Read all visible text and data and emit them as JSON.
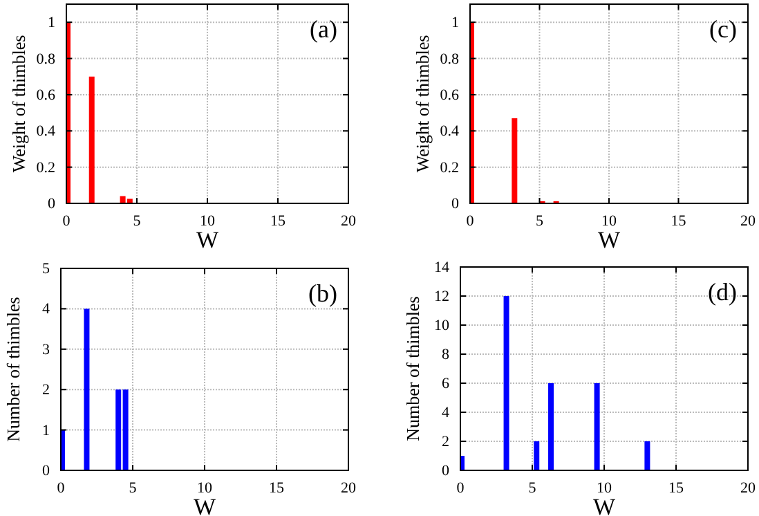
{
  "chart_data": [
    {
      "type": "bar",
      "x": [
        0,
        1.8,
        4.0,
        4.5
      ],
      "values": [
        1,
        0.7,
        0.04,
        0.025
      ],
      "color": "#ff0000",
      "xlim": [
        0,
        20
      ],
      "xticks": [
        0,
        5,
        10,
        15,
        20
      ],
      "ylim": [
        0,
        1.1
      ],
      "yticks": [
        0,
        0.2,
        0.4,
        0.6,
        0.8,
        1
      ],
      "xlabel": "W",
      "ylabel": "Weight of thimbles",
      "annotations": [
        "(a)"
      ],
      "grid": true
    },
    {
      "type": "bar",
      "x": [
        0,
        3.2,
        5.2,
        6.2
      ],
      "values": [
        1,
        0.47,
        0.012,
        0.012
      ],
      "color": "#ff0000",
      "xlim": [
        0,
        20
      ],
      "xticks": [
        0,
        5,
        10,
        15,
        20
      ],
      "ylim": [
        0,
        1.1
      ],
      "yticks": [
        0,
        0.2,
        0.4,
        0.6,
        0.8,
        1
      ],
      "xlabel": "W",
      "ylabel": "Weight of thimbles",
      "annotations": [
        "(c)"
      ],
      "grid": true
    },
    {
      "type": "bar",
      "x": [
        0,
        1.8,
        4.0,
        4.5
      ],
      "values": [
        1,
        4,
        2,
        2
      ],
      "color": "#0000ff",
      "xlim": [
        0,
        20
      ],
      "xticks": [
        0,
        5,
        10,
        15,
        20
      ],
      "ylim": [
        0,
        5
      ],
      "yticks": [
        0,
        1,
        2,
        3,
        4,
        5
      ],
      "xlabel": "W",
      "ylabel": "Number of thimbles",
      "annotations": [
        "(b)"
      ],
      "grid": true
    },
    {
      "type": "bar",
      "x": [
        0,
        3.2,
        5.3,
        6.3,
        9.5,
        13
      ],
      "values": [
        1,
        12,
        2,
        6,
        6,
        2
      ],
      "color": "#0000ff",
      "xlim": [
        0,
        20
      ],
      "xticks": [
        0,
        5,
        10,
        15,
        20
      ],
      "ylim": [
        0,
        14
      ],
      "yticks": [
        0,
        2,
        4,
        6,
        8,
        10,
        12,
        14
      ],
      "xlabel": "W",
      "ylabel": "Number of thimbles",
      "annotations": [
        "(d)"
      ],
      "grid": true
    }
  ]
}
